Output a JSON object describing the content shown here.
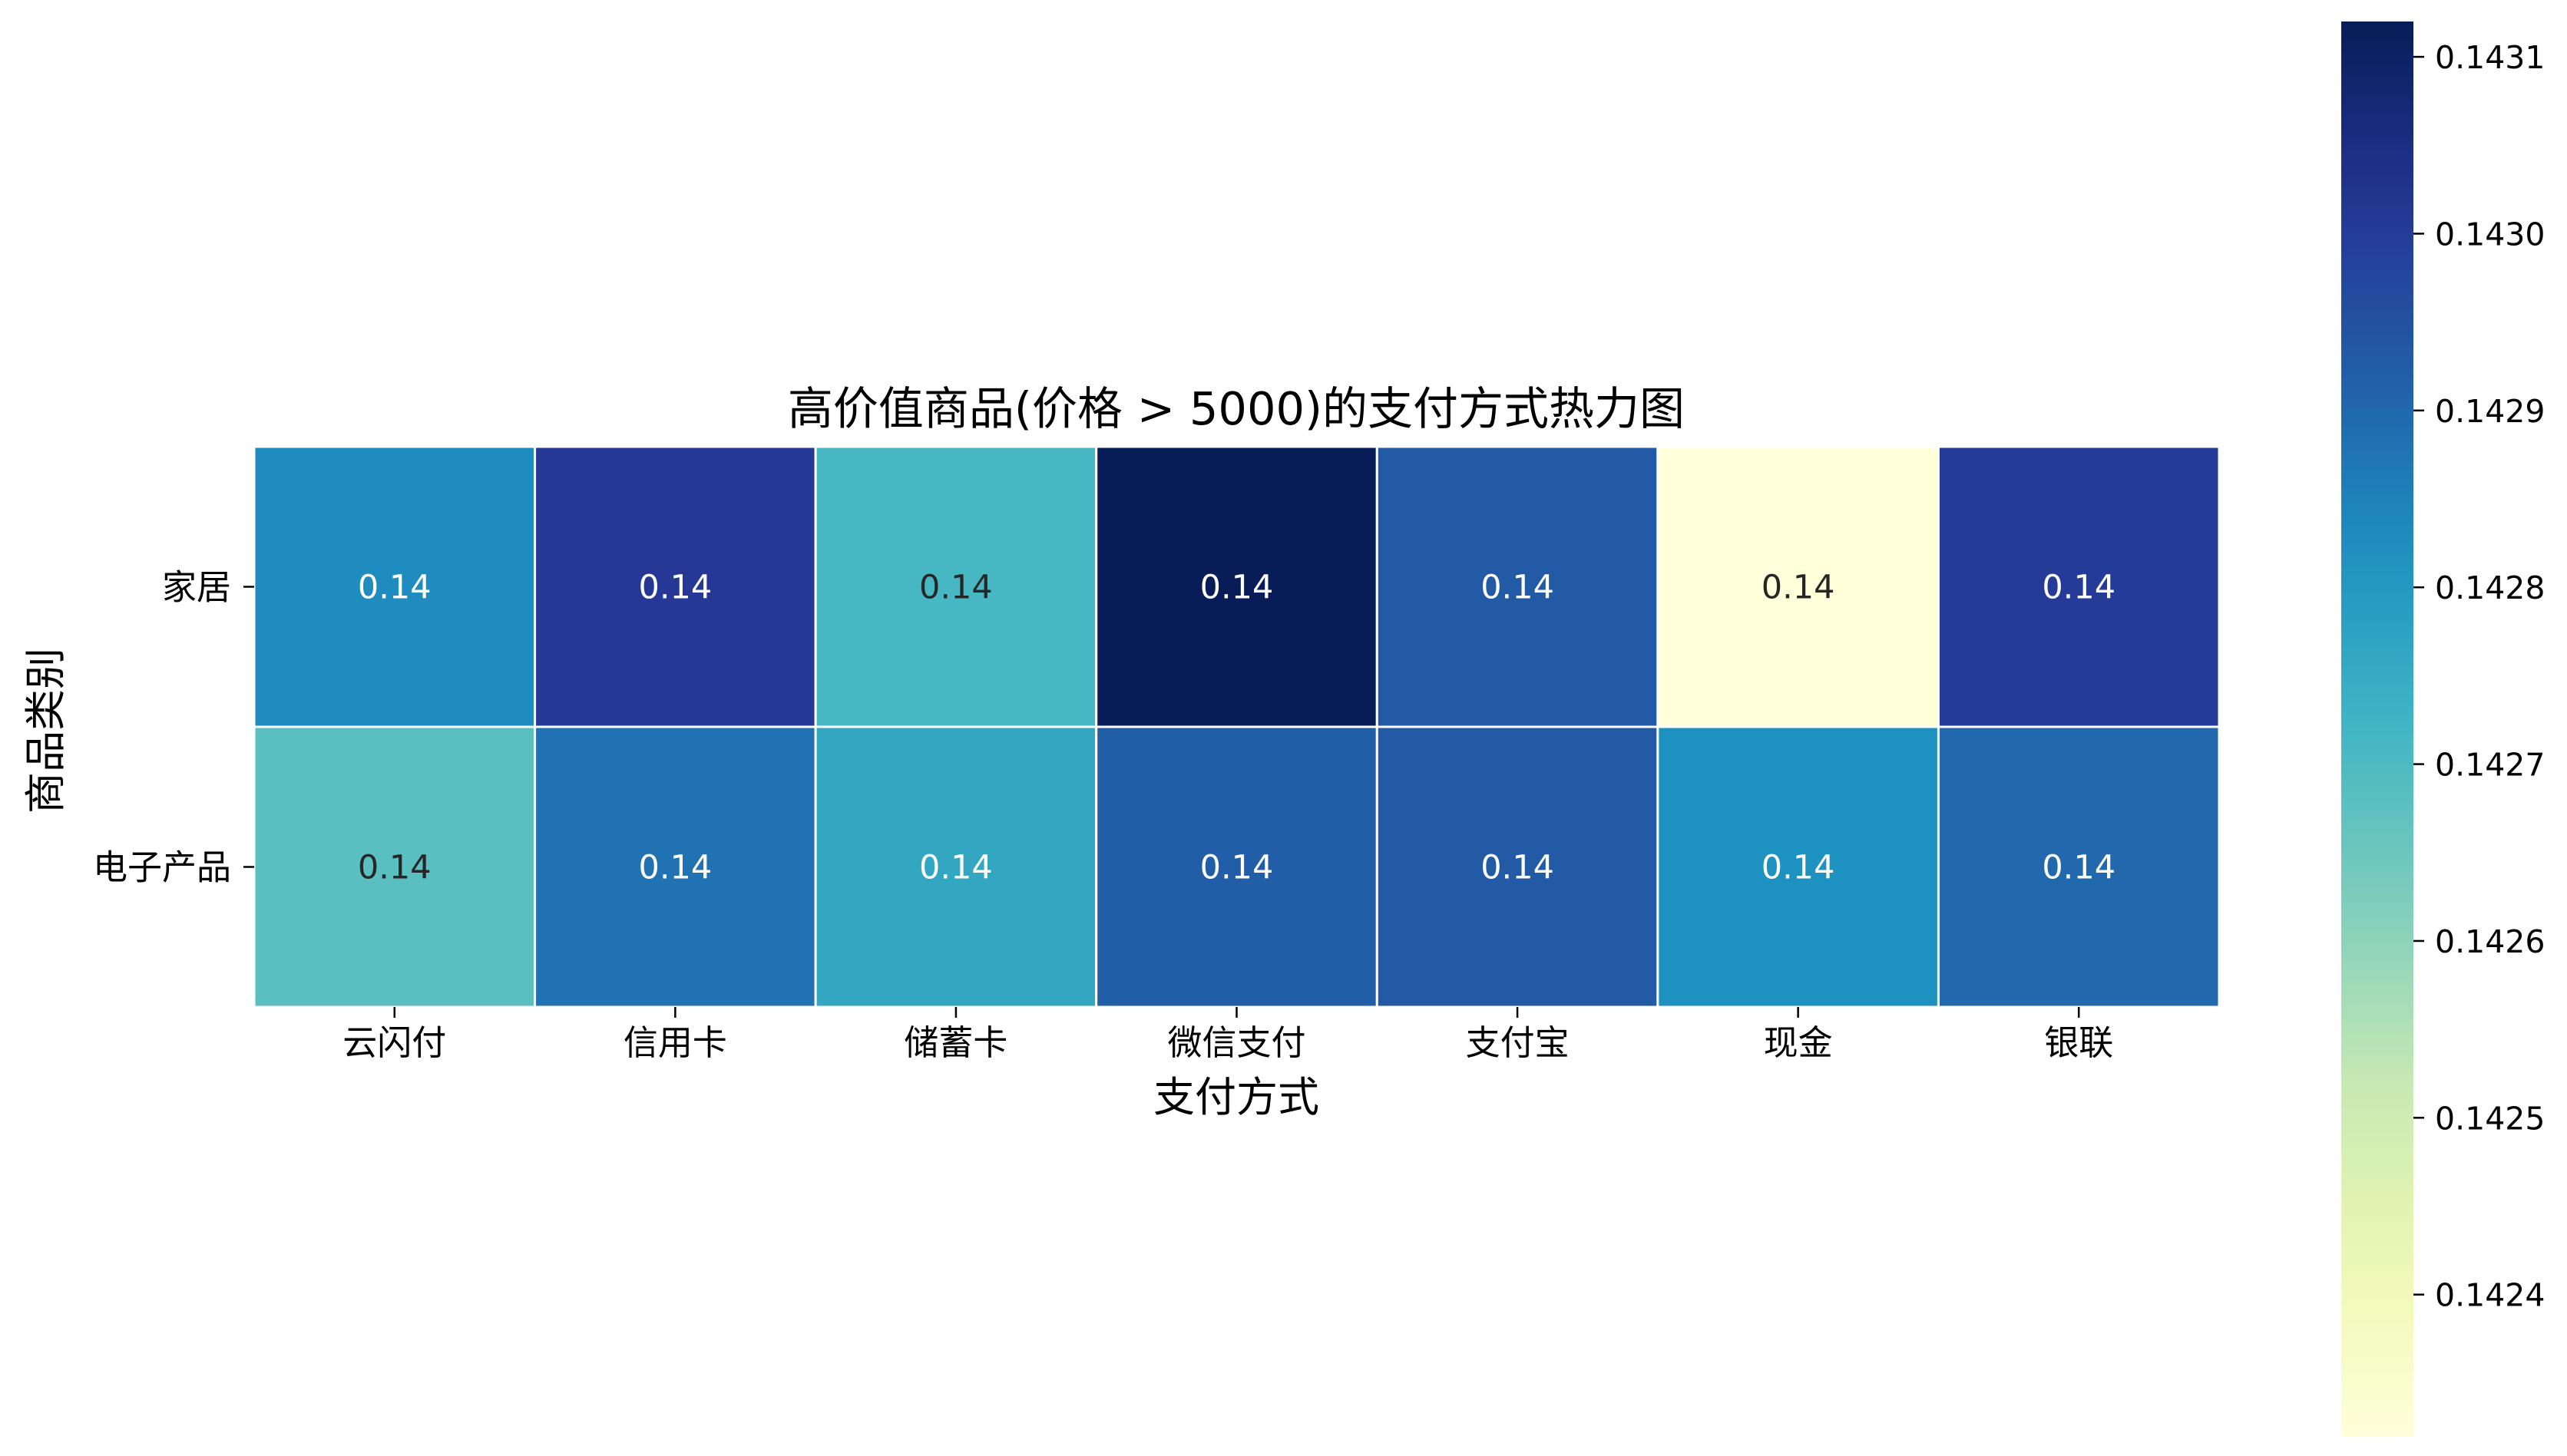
{
  "chart_data": {
    "type": "heatmap",
    "title": "高价值商品(价格 > 5000)的支付方式热力图",
    "xlabel": "支付方式",
    "ylabel": "商品类别",
    "x_categories": [
      "云闪付",
      "信用卡",
      "储蓄卡",
      "微信支付",
      "支付宝",
      "现金",
      "银联"
    ],
    "y_categories": [
      "家居",
      "电子产品"
    ],
    "values": [
      [
        0.14283,
        0.14301,
        0.14271,
        0.14312,
        0.14293,
        0.14232,
        0.143
      ],
      [
        0.14268,
        0.14288,
        0.14276,
        0.14292,
        0.14293,
        0.14282,
        0.1429
      ]
    ],
    "cell_labels": [
      [
        "0.14",
        "0.14",
        "0.14",
        "0.14",
        "0.14",
        "0.14",
        "0.14"
      ],
      [
        "0.14",
        "0.14",
        "0.14",
        "0.14",
        "0.14",
        "0.14",
        "0.14"
      ]
    ],
    "colormap": "YlGnBu",
    "colorbar": {
      "min": 0.14232,
      "max": 0.14312,
      "ticks": [
        0.1424,
        0.1425,
        0.1426,
        0.1427,
        0.1428,
        0.1429,
        0.143,
        0.1431
      ],
      "tick_labels": [
        "0.1424",
        "0.1425",
        "0.1426",
        "0.1427",
        "0.1428",
        "0.1429",
        "0.1430",
        "0.1431"
      ]
    },
    "cell_border_color": "#ffffff",
    "light_text_color": "#ffffff",
    "dark_text_color": "#262626",
    "axis_text_color": "#000000"
  }
}
